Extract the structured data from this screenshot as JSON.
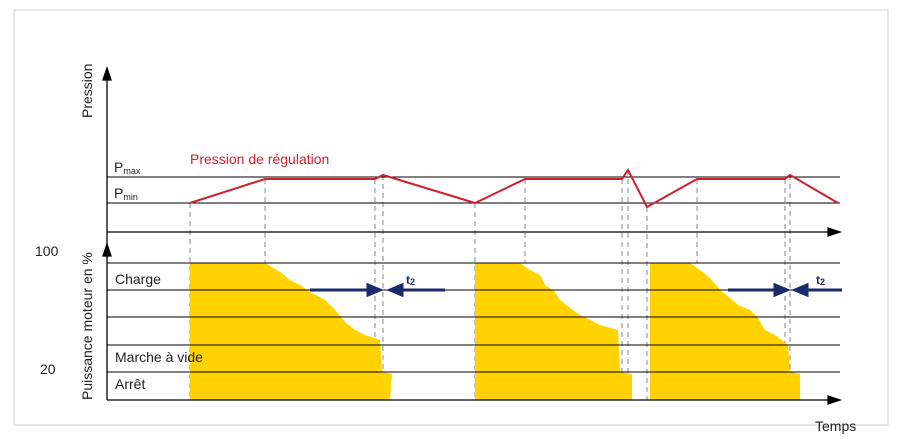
{
  "pressure_chart": {
    "axis_label": "Pression",
    "p_max": {
      "main": "P",
      "sub": "max"
    },
    "p_min": {
      "main": "P",
      "sub": "min"
    },
    "curve_label": "Pression de régulation"
  },
  "power_chart": {
    "axis_label": "Puissance moteur en %",
    "level_high": "100",
    "level_low": "20",
    "rows": [
      "Charge",
      "Marche à vide",
      "Arrêt"
    ],
    "interval_labels": [
      {
        "main": "t",
        "sub": "2"
      },
      {
        "main": "t",
        "sub": "2"
      }
    ]
  },
  "x_axis_label": "Temps"
}
